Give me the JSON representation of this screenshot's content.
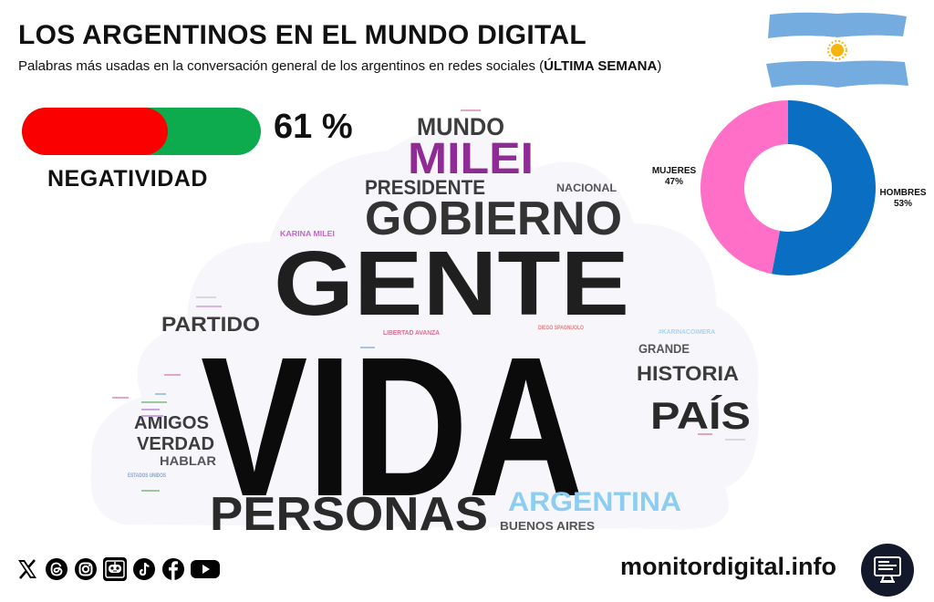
{
  "header": {
    "title": "LOS ARGENTINOS EN EL MUNDO DIGITAL",
    "subtitle_pre": "Palabras más usadas en la conversación general de los argentinos en redes sociales (",
    "subtitle_bold": "ÚLTIMA SEMANA",
    "subtitle_post": ")"
  },
  "sentiment": {
    "percent": 61,
    "percent_label": "61 %",
    "label": "NEGATIVIDAD",
    "colors": {
      "negative": "#fb0000",
      "positive": "#0dab4e"
    }
  },
  "gender": {
    "segments": [
      {
        "label": "HOMBRES",
        "value": "53%",
        "share": 53,
        "color": "#0a6fc2"
      },
      {
        "label": "MUJERES",
        "value": "47%",
        "share": 47,
        "color": "#ff6ec7"
      }
    ]
  },
  "wordcloud": {
    "words": [
      {
        "text": "VIDA",
        "color": "#0b0b0b"
      },
      {
        "text": "GENTE",
        "color": "#1f1f1f"
      },
      {
        "text": "GOBIERNO",
        "color": "#333333"
      },
      {
        "text": "PERSONAS",
        "color": "#2a2a2a"
      },
      {
        "text": "MILEI",
        "color": "#8e2b94"
      },
      {
        "text": "MUNDO",
        "color": "#3c3c3c"
      },
      {
        "text": "PRESIDENTE",
        "color": "#3c3c3c"
      },
      {
        "text": "NACIONAL",
        "color": "#555555"
      },
      {
        "text": "PARTIDO",
        "color": "#3c3c3c"
      },
      {
        "text": "HISTORIA",
        "color": "#3c3c3c"
      },
      {
        "text": "PAÍS",
        "color": "#2a2a2a"
      },
      {
        "text": "GRANDE",
        "color": "#555555"
      },
      {
        "text": "AMIGOS",
        "color": "#3c3c3c"
      },
      {
        "text": "VERDAD",
        "color": "#3c3c3c"
      },
      {
        "text": "HABLAR",
        "color": "#555555"
      },
      {
        "text": "ARGENTINA",
        "color": "#8ccdf0"
      },
      {
        "text": "BUENOS AIRES",
        "color": "#555555"
      },
      {
        "text": "KARINA MILEI",
        "color": "#c268c6"
      },
      {
        "text": "LIBERTAD AVANZA",
        "color": "#d9708f"
      },
      {
        "text": "DIEGO SPAGNUOLO",
        "color": "#e07d7d"
      },
      {
        "text": "#KARINACOIMERA",
        "color": "#a9d3f2"
      },
      {
        "text": "ESTADOS UNIDOS",
        "color": "#8aa2c9"
      }
    ]
  },
  "footer": {
    "site": "monitordigital.info",
    "socials": [
      "x-icon",
      "threads-icon",
      "instagram-icon",
      "robot-icon",
      "tiktok-icon",
      "facebook-icon",
      "youtube-icon"
    ]
  }
}
